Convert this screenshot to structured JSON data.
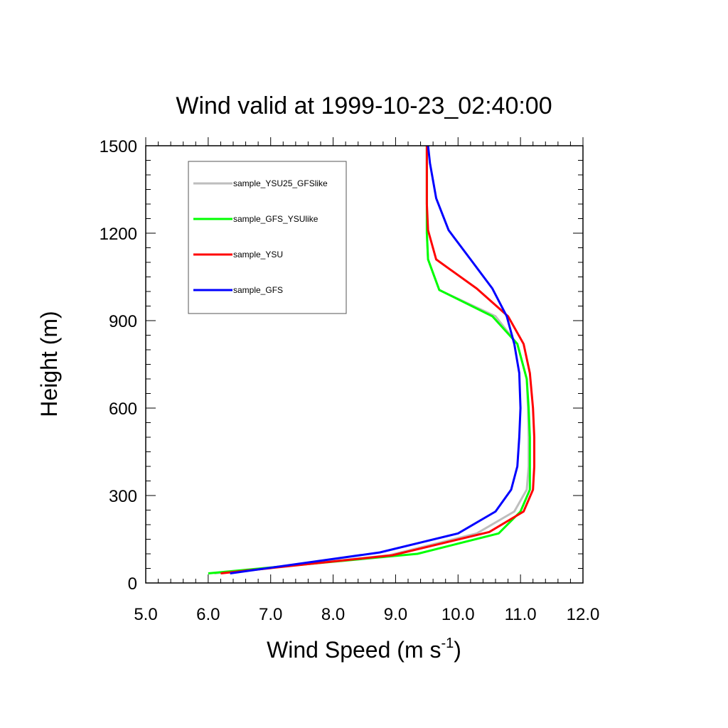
{
  "chart_data": {
    "type": "line",
    "title": "Wind valid at 1999-10-23_02:40:00",
    "xlabel": "Wind Speed (m s",
    "xlabel_superscript": "-1",
    "xlabel_suffix": ")",
    "ylabel": "Height (m)",
    "xlim": [
      5.0,
      12.0
    ],
    "ylim": [
      0,
      1500
    ],
    "x_ticks": [
      "5.0",
      "6.0",
      "7.0",
      "8.0",
      "9.0",
      "10.0",
      "11.0",
      "12.0"
    ],
    "y_ticks": [
      "0",
      "300",
      "600",
      "900",
      "1200",
      "1500"
    ],
    "grid": false,
    "legend_position": "top-left",
    "series": [
      {
        "name": "sample_YSU25_GFSlike",
        "color": "#bebebe",
        "points": [
          [
            6.1,
            33
          ],
          [
            8.9,
            95
          ],
          [
            10.3,
            170
          ],
          [
            10.9,
            245
          ],
          [
            11.1,
            320
          ],
          [
            11.13,
            400
          ],
          [
            11.13,
            500
          ],
          [
            11.12,
            600
          ],
          [
            11.1,
            700
          ],
          [
            10.95,
            820
          ],
          [
            10.6,
            915
          ],
          [
            9.7,
            1005
          ],
          [
            9.52,
            1110
          ],
          [
            9.5,
            1200
          ],
          [
            9.5,
            1300
          ],
          [
            9.5,
            1400
          ],
          [
            9.5,
            1500
          ]
        ]
      },
      {
        "name": "sample_GFS_YSUlike",
        "color": "#00ff00",
        "points": [
          [
            6.0,
            33
          ],
          [
            9.35,
            100
          ],
          [
            10.65,
            170
          ],
          [
            11.0,
            245
          ],
          [
            11.15,
            320
          ],
          [
            11.15,
            400
          ],
          [
            11.15,
            500
          ],
          [
            11.13,
            600
          ],
          [
            11.1,
            700
          ],
          [
            10.95,
            820
          ],
          [
            10.55,
            915
          ],
          [
            9.7,
            1005
          ],
          [
            9.52,
            1110
          ],
          [
            9.5,
            1200
          ],
          [
            9.5,
            1300
          ],
          [
            9.5,
            1400
          ],
          [
            9.5,
            1500
          ]
        ]
      },
      {
        "name": "sample_YSU",
        "color": "#ff0000",
        "points": [
          [
            6.2,
            33
          ],
          [
            8.95,
            95
          ],
          [
            10.5,
            175
          ],
          [
            11.05,
            245
          ],
          [
            11.2,
            320
          ],
          [
            11.22,
            400
          ],
          [
            11.22,
            500
          ],
          [
            11.2,
            600
          ],
          [
            11.15,
            720
          ],
          [
            11.05,
            820
          ],
          [
            10.8,
            915
          ],
          [
            10.3,
            1010
          ],
          [
            9.65,
            1110
          ],
          [
            9.52,
            1210
          ],
          [
            9.5,
            1300
          ],
          [
            9.5,
            1400
          ],
          [
            9.5,
            1500
          ]
        ]
      },
      {
        "name": "sample_GFS",
        "color": "#0000ff",
        "points": [
          [
            6.35,
            33
          ],
          [
            8.75,
            105
          ],
          [
            10.0,
            170
          ],
          [
            10.6,
            245
          ],
          [
            10.85,
            320
          ],
          [
            10.95,
            400
          ],
          [
            10.98,
            500
          ],
          [
            11.0,
            600
          ],
          [
            10.98,
            720
          ],
          [
            10.9,
            820
          ],
          [
            10.78,
            915
          ],
          [
            10.55,
            1010
          ],
          [
            10.2,
            1110
          ],
          [
            9.85,
            1210
          ],
          [
            9.65,
            1320
          ],
          [
            9.55,
            1440
          ],
          [
            9.52,
            1500
          ]
        ]
      }
    ]
  }
}
